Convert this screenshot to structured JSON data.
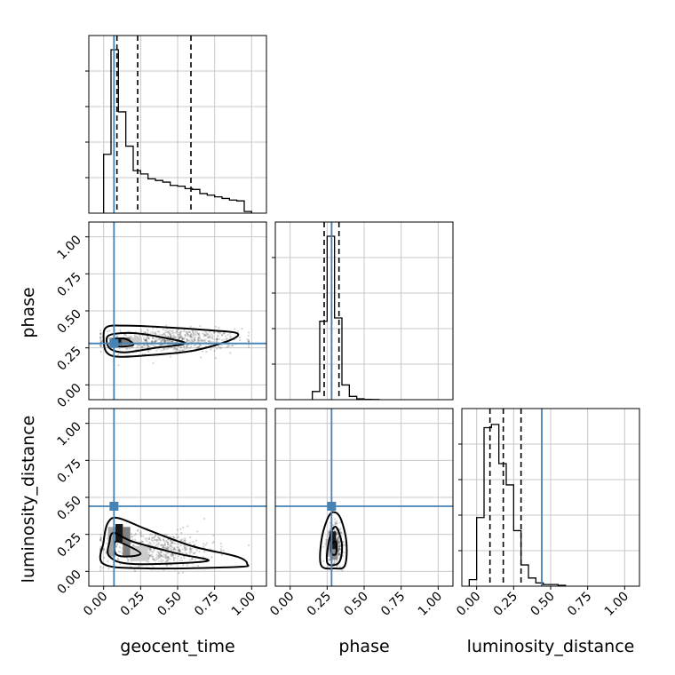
{
  "chart_data": {
    "type": "corner",
    "parameters": [
      "geocent_time",
      "phase",
      "luminosity_distance"
    ],
    "axis_range": [
      -0.1,
      1.1
    ],
    "ticks": [
      0.0,
      0.25,
      0.5,
      0.75,
      1.0
    ],
    "tick_labels": [
      "0.00",
      "0.25",
      "0.50",
      "0.75",
      "1.00"
    ],
    "grid": true,
    "truths": {
      "geocent_time": 0.07,
      "phase": 0.28,
      "luminosity_distance": 0.44
    },
    "truth_color": "#4682b4",
    "histograms": {
      "geocent_time": {
        "bin_edges": [
          0.0,
          0.05,
          0.1,
          0.15,
          0.2,
          0.25,
          0.3,
          0.35,
          0.4,
          0.45,
          0.5,
          0.55,
          0.6,
          0.65,
          0.7,
          0.75,
          0.8,
          0.85,
          0.9,
          0.95,
          1.0
        ],
        "counts": [
          0.36,
          1.0,
          0.62,
          0.41,
          0.26,
          0.24,
          0.21,
          0.2,
          0.19,
          0.17,
          0.165,
          0.15,
          0.145,
          0.12,
          0.11,
          0.1,
          0.09,
          0.08,
          0.075,
          0.01
        ],
        "quantiles": [
          0.09,
          0.23,
          0.59
        ]
      },
      "phase": {
        "bin_edges": [
          0.15,
          0.2,
          0.25,
          0.3,
          0.35,
          0.4,
          0.45,
          0.5,
          0.55,
          0.6
        ],
        "counts": [
          0.05,
          0.48,
          1.0,
          0.5,
          0.09,
          0.02,
          0.005,
          0.002,
          0.001
        ],
        "quantiles": [
          0.23,
          0.28,
          0.33
        ]
      },
      "luminosity_distance": {
        "bin_edges": [
          -0.05,
          0.0,
          0.05,
          0.1,
          0.15,
          0.2,
          0.25,
          0.3,
          0.35,
          0.4,
          0.45,
          0.5,
          0.55,
          0.6
        ],
        "counts": [
          0.04,
          0.42,
          0.97,
          0.99,
          0.75,
          0.62,
          0.34,
          0.13,
          0.05,
          0.02,
          0.01,
          0.01,
          0.005
        ],
        "quantiles": [
          0.09,
          0.18,
          0.3
        ]
      }
    },
    "contours": {
      "phase_vs_geocent_time": [
        [
          [
            0.0,
            0.31
          ],
          [
            0.02,
            0.22
          ],
          [
            0.1,
            0.19
          ],
          [
            0.3,
            0.2
          ],
          [
            0.6,
            0.23
          ],
          [
            0.85,
            0.3
          ],
          [
            0.9,
            0.35
          ],
          [
            0.7,
            0.37
          ],
          [
            0.4,
            0.39
          ],
          [
            0.15,
            0.4
          ],
          [
            0.02,
            0.39
          ]
        ],
        [
          [
            0.02,
            0.3
          ],
          [
            0.05,
            0.24
          ],
          [
            0.15,
            0.22
          ],
          [
            0.35,
            0.25
          ],
          [
            0.55,
            0.28
          ],
          [
            0.4,
            0.32
          ],
          [
            0.2,
            0.35
          ],
          [
            0.05,
            0.34
          ]
        ],
        [
          [
            0.05,
            0.29
          ],
          [
            0.1,
            0.26
          ],
          [
            0.2,
            0.27
          ],
          [
            0.15,
            0.31
          ],
          [
            0.07,
            0.31
          ]
        ]
      ],
      "luminosity_distance_vs_geocent_time": [
        [
          [
            0.0,
            0.05
          ],
          [
            0.3,
            0.02
          ],
          [
            0.9,
            0.03
          ],
          [
            0.97,
            0.05
          ],
          [
            0.9,
            0.1
          ],
          [
            0.6,
            0.17
          ],
          [
            0.3,
            0.28
          ],
          [
            0.1,
            0.36
          ],
          [
            0.03,
            0.33
          ],
          [
            0.0,
            0.2
          ]
        ],
        [
          [
            0.04,
            0.1
          ],
          [
            0.2,
            0.05
          ],
          [
            0.7,
            0.07
          ],
          [
            0.5,
            0.12
          ],
          [
            0.2,
            0.2
          ],
          [
            0.07,
            0.26
          ],
          [
            0.04,
            0.2
          ]
        ],
        [
          [
            0.08,
            0.12
          ],
          [
            0.15,
            0.1
          ],
          [
            0.25,
            0.12
          ],
          [
            0.15,
            0.18
          ],
          [
            0.08,
            0.2
          ]
        ]
      ],
      "luminosity_distance_vs_phase": [
        [
          [
            0.21,
            0.04
          ],
          [
            0.3,
            0.02
          ],
          [
            0.37,
            0.04
          ],
          [
            0.38,
            0.2
          ],
          [
            0.34,
            0.36
          ],
          [
            0.29,
            0.4
          ],
          [
            0.25,
            0.35
          ],
          [
            0.21,
            0.2
          ]
        ],
        [
          [
            0.25,
            0.06
          ],
          [
            0.33,
            0.06
          ],
          [
            0.35,
            0.18
          ],
          [
            0.31,
            0.3
          ],
          [
            0.27,
            0.24
          ]
        ],
        [
          [
            0.28,
            0.12
          ],
          [
            0.31,
            0.12
          ],
          [
            0.31,
            0.2
          ],
          [
            0.28,
            0.18
          ]
        ]
      ]
    },
    "density_blocks": {
      "phase_vs_geocent_time": [
        [
          0.08,
          0.27,
          0.05,
          0.05,
          0.9
        ],
        [
          0.12,
          0.27,
          0.06,
          0.05,
          0.5
        ],
        [
          0.04,
          0.27,
          0.04,
          0.05,
          0.35
        ],
        [
          0.18,
          0.27,
          0.08,
          0.05,
          0.2
        ]
      ],
      "luminosity_distance_vs_geocent_time": [
        [
          0.08,
          0.2,
          0.05,
          0.12,
          0.9
        ],
        [
          0.13,
          0.1,
          0.05,
          0.2,
          0.5
        ],
        [
          0.03,
          0.1,
          0.05,
          0.2,
          0.35
        ],
        [
          0.18,
          0.07,
          0.12,
          0.1,
          0.2
        ]
      ],
      "luminosity_distance_vs_phase": [
        [
          0.27,
          0.15,
          0.04,
          0.12,
          0.9
        ],
        [
          0.27,
          0.08,
          0.05,
          0.07,
          0.45
        ],
        [
          0.24,
          0.1,
          0.03,
          0.12,
          0.3
        ]
      ]
    },
    "scatter_clouds": {
      "phase_vs_geocent_time": {
        "center": [
          0.45,
          0.3
        ],
        "spread": [
          0.45,
          0.08
        ],
        "count": 700
      },
      "luminosity_distance_vs_geocent_time": {
        "center": [
          0.35,
          0.15
        ],
        "spread": [
          0.4,
          0.12
        ],
        "count": 600
      },
      "luminosity_distance_vs_phase": {
        "center": [
          0.3,
          0.18
        ],
        "spread": [
          0.05,
          0.12
        ],
        "count": 500
      }
    }
  }
}
